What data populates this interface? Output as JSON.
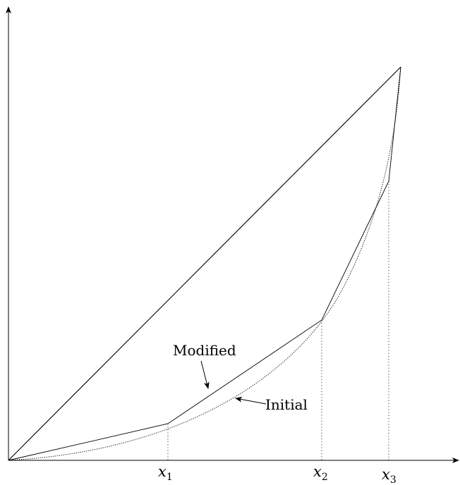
{
  "diagram": {
    "x_ticks": [
      {
        "base": "x",
        "sub": "1"
      },
      {
        "base": "x",
        "sub": "2"
      },
      {
        "base": "x",
        "sub": "3"
      }
    ],
    "annotations": {
      "modified": "Modified",
      "initial": "Initial"
    },
    "colors": {
      "line": "#000000",
      "background": "#ffffff"
    }
  }
}
